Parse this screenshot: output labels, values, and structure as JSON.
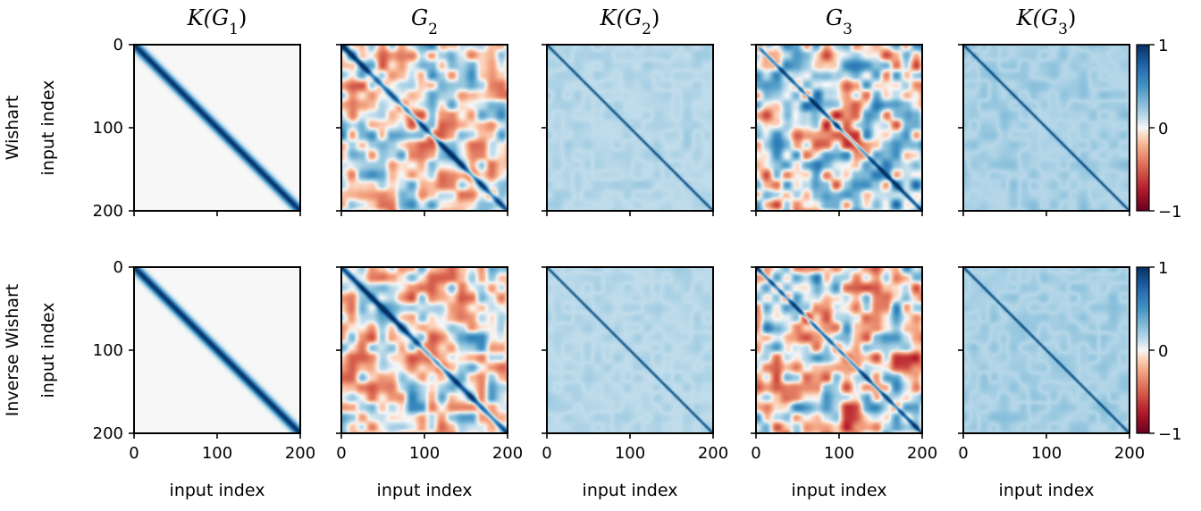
{
  "chart_data": {
    "type": "heatmap",
    "figure_kind": "matrix-grid",
    "columns": [
      {
        "id": "KG1",
        "title": "K(G1)",
        "title_parts": [
          {
            "t": "K(G",
            "italic": true
          },
          {
            "t": "1",
            "sub": true
          },
          {
            "t": ")",
            "italic": false
          }
        ]
      },
      {
        "id": "G2",
        "title": "G2",
        "title_parts": [
          {
            "t": "G",
            "italic": true
          },
          {
            "t": "2",
            "sub": true
          }
        ]
      },
      {
        "id": "KG2",
        "title": "K(G2)",
        "title_parts": [
          {
            "t": "K(G",
            "italic": true
          },
          {
            "t": "2",
            "sub": true
          },
          {
            "t": ")",
            "italic": false
          }
        ]
      },
      {
        "id": "G3",
        "title": "G3",
        "title_parts": [
          {
            "t": "G",
            "italic": true
          },
          {
            "t": "3",
            "sub": true
          }
        ]
      },
      {
        "id": "KG3",
        "title": "K(G3)",
        "title_parts": [
          {
            "t": "K(G",
            "italic": true
          },
          {
            "t": "3",
            "sub": true
          },
          {
            "t": ")",
            "italic": false
          }
        ]
      }
    ],
    "rows": [
      {
        "id": "wishart",
        "row_label": "Wishart",
        "ylabel": "input index"
      },
      {
        "id": "inverse-wishart",
        "row_label": "Inverse Wishart",
        "ylabel": "input index"
      }
    ],
    "xlabel": "input index",
    "x_ticks": [
      0,
      100,
      200
    ],
    "y_ticks": [
      0,
      100,
      200
    ],
    "xlim": [
      0,
      200
    ],
    "ylim": [
      0,
      200
    ],
    "matrix_size": 200,
    "colorbar": {
      "cmap": "RdBu",
      "vmin": -1,
      "vmax": 1,
      "ticks": [
        1,
        0,
        -1
      ],
      "tick_labels": [
        "1",
        "0",
        "−1"
      ]
    },
    "panel_styles": {
      "KG1": {
        "diag_value": 1.0,
        "diag_width": 5,
        "noise": 0.0,
        "baseline": 0.0
      },
      "G2": {
        "diag_value": 0.9,
        "diag_width": 3,
        "noise": 0.35,
        "baseline": 0.0
      },
      "KG2": {
        "diag_value": 1.0,
        "diag_width": 1.2,
        "noise": 0.07,
        "baseline": 0.12
      },
      "G3": {
        "diag_value": 0.95,
        "diag_width": 2,
        "noise": 0.45,
        "baseline": 0.1
      },
      "KG3": {
        "diag_value": 1.0,
        "diag_width": 1.0,
        "noise": 0.1,
        "baseline": 0.15
      }
    },
    "colors": {
      "cmap_low": "#67001f",
      "cmap_mid": "#f7f7f7",
      "cmap_high": "#053061"
    }
  }
}
